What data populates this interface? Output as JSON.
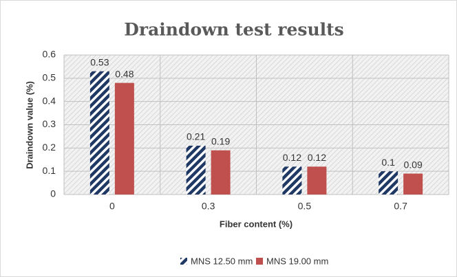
{
  "chart_data": {
    "type": "bar",
    "title": "Draindown test results",
    "x_label": "Fiber content (%)",
    "y_label": "Draindown value (%)",
    "categories": [
      "0",
      "0.3",
      "0.5",
      "0.7"
    ],
    "series": [
      {
        "name": "MNS 12.50 mm",
        "color": "#1f3864",
        "pattern": "diagonal",
        "values": [
          0.53,
          0.21,
          0.12,
          0.1
        ]
      },
      {
        "name": "MNS 19.00 mm",
        "color": "#c0504d",
        "values": [
          0.48,
          0.19,
          0.12,
          0.09
        ]
      }
    ],
    "ylim": [
      0,
      0.6
    ],
    "yticks": [
      0,
      0.1,
      0.2,
      0.3,
      0.4,
      0.5,
      0.6
    ],
    "grid": true,
    "legend": "bottom"
  }
}
